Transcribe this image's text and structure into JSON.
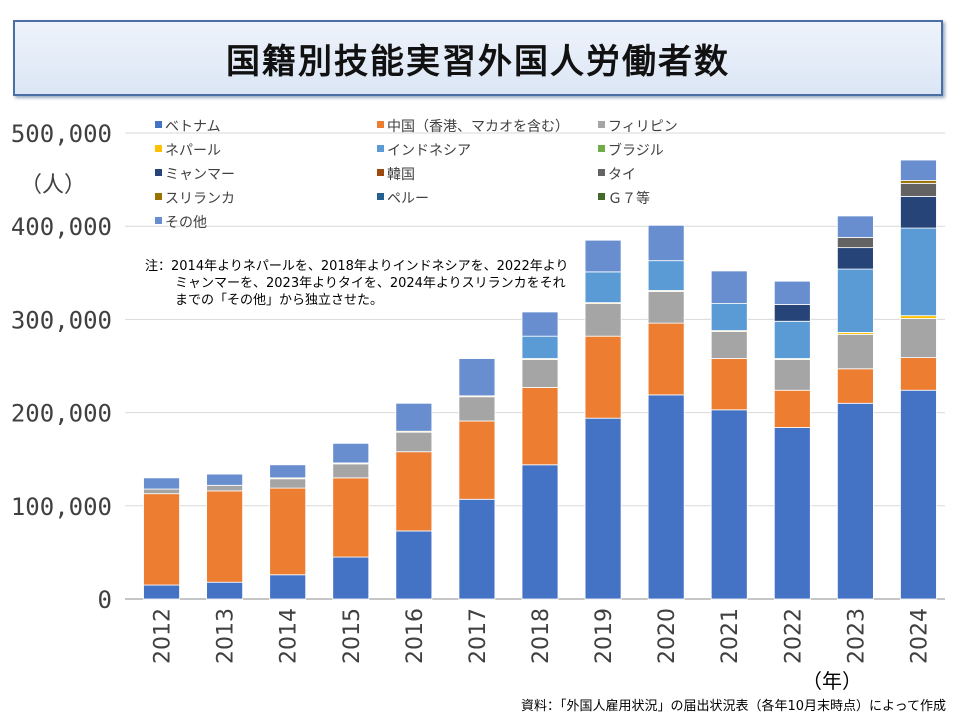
{
  "title": "国籍別技能実習外国人労働者数",
  "y_unit": "（人）",
  "x_unit": "（年）",
  "note": "注：2014年よりネパールを、2018年よりインドネシアを、2022年よりミャンマーを、2023年よりタイを、2024年よりスリランカをそれまでの「その他」から独立させた。",
  "source": "資料：「外国人雇用状況」の届出状況表（各年10月末時点）によって作成",
  "colors": {
    "ベトナム": "#4472c4",
    "中国（香港、マカオを含む）": "#ed7d31",
    "フィリピン": "#a5a5a5",
    "ネパール": "#ffc000",
    "インドネシア": "#5b9bd5",
    "ブラジル": "#70ad47",
    "ミャンマー": "#264478",
    "韓国": "#9e480e",
    "タイ": "#636363",
    "スリランカ": "#997300",
    "ペルー": "#255e91",
    "Ｇ７等": "#43682b",
    "その他": "#698ed0"
  },
  "chart_data": {
    "type": "bar",
    "stacked": true,
    "title": "国籍別技能実習外国人労働者数",
    "xlabel": "（年）",
    "ylabel": "（人）",
    "ylim": [
      0,
      500000
    ],
    "yticks": [
      0,
      100000,
      200000,
      300000,
      400000,
      500000
    ],
    "ytick_labels": [
      "0",
      "100,000",
      "200,000",
      "300,000",
      "400,000",
      "500,000"
    ],
    "categories": [
      "2012",
      "2013",
      "2014",
      "2015",
      "2016",
      "2017",
      "2018",
      "2019",
      "2020",
      "2021",
      "2022",
      "2023",
      "2024"
    ],
    "series": [
      {
        "name": "ベトナム",
        "values": [
          15000,
          18000,
          26000,
          45000,
          73000,
          107000,
          144000,
          194000,
          219000,
          203000,
          184000,
          210000,
          224000
        ]
      },
      {
        "name": "中国（香港、マカオを含む）",
        "values": [
          98000,
          98000,
          93000,
          85000,
          85000,
          84000,
          83000,
          88000,
          77000,
          55000,
          40000,
          37000,
          35000
        ]
      },
      {
        "name": "フィリピン",
        "values": [
          5000,
          6000,
          10000,
          15000,
          21000,
          26000,
          30000,
          35000,
          34000,
          29000,
          33000,
          37000,
          42000
        ]
      },
      {
        "name": "ネパール",
        "values": [
          0,
          0,
          1000,
          1000,
          1000,
          1000,
          1000,
          1000,
          1000,
          1000,
          1000,
          2000,
          3000
        ]
      },
      {
        "name": "インドネシア",
        "values": [
          0,
          0,
          0,
          0,
          0,
          0,
          24000,
          33000,
          32000,
          29000,
          40000,
          68000,
          94000
        ]
      },
      {
        "name": "ブラジル",
        "values": [
          0,
          0,
          0,
          0,
          0,
          0,
          0,
          0,
          0,
          0,
          0,
          0,
          0
        ]
      },
      {
        "name": "ミャンマー",
        "values": [
          0,
          0,
          0,
          0,
          0,
          0,
          0,
          0,
          0,
          0,
          18000,
          23000,
          34000
        ]
      },
      {
        "name": "韓国",
        "values": [
          0,
          0,
          0,
          0,
          0,
          0,
          0,
          0,
          0,
          0,
          0,
          0,
          0
        ]
      },
      {
        "name": "タイ",
        "values": [
          0,
          0,
          0,
          0,
          0,
          0,
          0,
          0,
          0,
          0,
          0,
          11000,
          14000
        ]
      },
      {
        "name": "スリランカ",
        "values": [
          0,
          0,
          0,
          0,
          0,
          0,
          0,
          0,
          0,
          0,
          0,
          0,
          3000
        ]
      },
      {
        "name": "ペルー",
        "values": [
          0,
          0,
          0,
          0,
          0,
          0,
          0,
          0,
          0,
          0,
          0,
          0,
          0
        ]
      },
      {
        "name": "Ｇ７等",
        "values": [
          0,
          0,
          0,
          0,
          0,
          0,
          0,
          0,
          0,
          0,
          0,
          0,
          0
        ]
      },
      {
        "name": "その他",
        "values": [
          12000,
          12000,
          14000,
          21000,
          30000,
          40000,
          26000,
          34000,
          38000,
          35000,
          25000,
          23000,
          22000
        ]
      }
    ],
    "legend_position": "top-left, 3 columns",
    "grid": true
  }
}
